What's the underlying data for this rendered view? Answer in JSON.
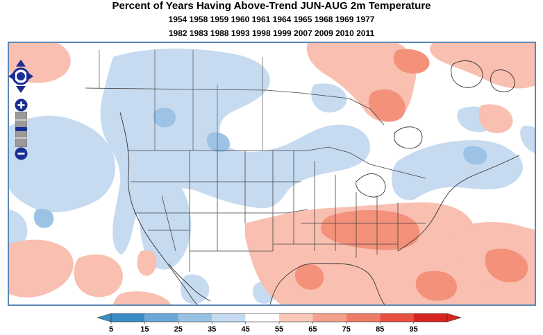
{
  "header": {
    "title": "Percent of Years Having Above-Trend JUN-AUG 2m Temperature",
    "years_line1": "1954 1958 1959 1960 1961 1964 1965 1968 1969 1977",
    "years_line2": "1982 1983 1988 1993 1998 1999 2007 2009 2010 2011"
  },
  "map": {
    "region": "North America",
    "season": "JUN-AUG",
    "variable": "2m Temperature"
  },
  "controls": {
    "pan_icon": "pan-arrows-icon",
    "zoom_in_icon": "plus-icon",
    "zoom_out_icon": "minus-icon",
    "zoom_slider_icon": "zoom-slider-icon"
  },
  "legend": {
    "ticks": [
      "5",
      "15",
      "25",
      "35",
      "45",
      "55",
      "65",
      "75",
      "85",
      "95"
    ],
    "colors": [
      "#3a8cc6",
      "#6aa8d8",
      "#98c2e4",
      "#c5daf0",
      "#ffffff",
      "#f9c8b8",
      "#f4a08a",
      "#ee7b66",
      "#e8503f",
      "#d8241f"
    ],
    "extend": "both"
  },
  "colors": {
    "frame_border": "#5b86b5",
    "control_blue": "#1b2f93",
    "light_blue": "#c6daf0",
    "mid_blue": "#9cc3e6",
    "light_red": "#f9bfb0",
    "mid_red": "#f3917a"
  }
}
